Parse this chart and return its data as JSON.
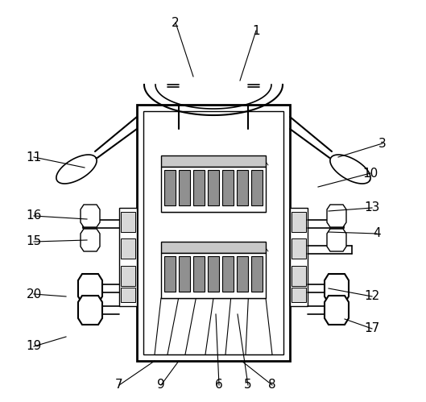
{
  "background_color": "#ffffff",
  "line_color": "#000000",
  "fig_width": 5.29,
  "fig_height": 4.99,
  "dpi": 100,
  "labels": [
    [
      "1",
      318,
      38
    ],
    [
      "2",
      218,
      28
    ],
    [
      "3",
      475,
      178
    ],
    [
      "4",
      468,
      290
    ],
    [
      "5",
      308,
      478
    ],
    [
      "6",
      272,
      478
    ],
    [
      "7",
      148,
      478
    ],
    [
      "8",
      338,
      478
    ],
    [
      "9",
      200,
      478
    ],
    [
      "10",
      460,
      215
    ],
    [
      "11",
      42,
      195
    ],
    [
      "12",
      462,
      368
    ],
    [
      "13",
      462,
      258
    ],
    [
      "15",
      42,
      300
    ],
    [
      "16",
      42,
      268
    ],
    [
      "17",
      462,
      408
    ],
    [
      "19",
      42,
      430
    ],
    [
      "20",
      42,
      365
    ]
  ],
  "leaders": [
    [
      "1",
      318,
      38,
      298,
      100
    ],
    [
      "2",
      218,
      28,
      240,
      95
    ],
    [
      "3",
      475,
      178,
      420,
      195
    ],
    [
      "4",
      468,
      290,
      408,
      288
    ],
    [
      "5",
      308,
      478,
      295,
      390
    ],
    [
      "6",
      272,
      478,
      268,
      390
    ],
    [
      "7",
      148,
      478,
      192,
      448
    ],
    [
      "8",
      338,
      478,
      300,
      448
    ],
    [
      "9",
      200,
      478,
      222,
      448
    ],
    [
      "10",
      460,
      215,
      395,
      232
    ],
    [
      "11",
      42,
      195,
      105,
      208
    ],
    [
      "12",
      462,
      368,
      408,
      358
    ],
    [
      "13",
      462,
      258,
      408,
      262
    ],
    [
      "15",
      42,
      300,
      108,
      298
    ],
    [
      "16",
      42,
      268,
      108,
      272
    ],
    [
      "17",
      462,
      408,
      428,
      396
    ],
    [
      "19",
      42,
      430,
      82,
      418
    ],
    [
      "20",
      42,
      365,
      82,
      368
    ]
  ]
}
